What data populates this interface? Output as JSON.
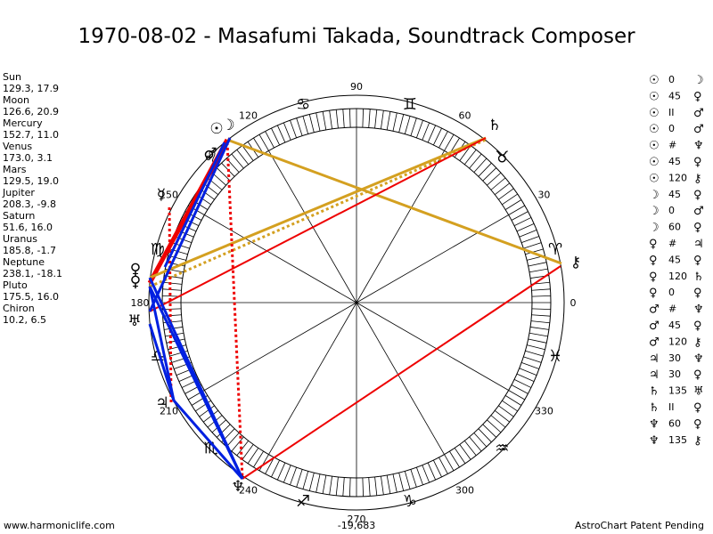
{
  "title": "1970-08-02 - Masafumi Takada, Soundtrack Composer",
  "planets": [
    {
      "name": "Sun",
      "position": "129.3, 17.9",
      "glyph": "☉"
    },
    {
      "name": "Moon",
      "position": "126.6, 20.9",
      "glyph": "☽"
    },
    {
      "name": "Mercury",
      "position": "152.7, 11.0",
      "glyph": "☿"
    },
    {
      "name": "Venus",
      "position": "173.0, 3.1",
      "glyph": "♀"
    },
    {
      "name": "Mars",
      "position": "129.5, 19.0",
      "glyph": "♂"
    },
    {
      "name": "Jupiter",
      "position": "208.3, -9.8",
      "glyph": "♃"
    },
    {
      "name": "Saturn",
      "position": "51.6, 16.0",
      "glyph": "♄"
    },
    {
      "name": "Uranus",
      "position": "185.8, -1.7",
      "glyph": "♅"
    },
    {
      "name": "Neptune",
      "position": "238.1, -18.1",
      "glyph": "♆"
    },
    {
      "name": "Pluto",
      "position": "175.5, 16.0",
      "glyph": "♀"
    },
    {
      "name": "Chiron",
      "position": "10.2, 6.5",
      "glyph": "⚷"
    }
  ],
  "degree_labels": [
    "0",
    "30",
    "60",
    "90",
    "120",
    "150",
    "180",
    "210",
    "240",
    "270",
    "300",
    "330"
  ],
  "signs": [
    "♈",
    "♉",
    "♊",
    "♋",
    "♌",
    "♍",
    "♎",
    "♏",
    "♐",
    "♑",
    "♒",
    "♓"
  ],
  "aspects": [
    {
      "p1": "☉",
      "aspect": "0",
      "p2": "☽"
    },
    {
      "p1": "☉",
      "aspect": "45",
      "p2": "♀"
    },
    {
      "p1": "☉",
      "aspect": "II",
      "p2": "♂"
    },
    {
      "p1": "☉",
      "aspect": "0",
      "p2": "♂"
    },
    {
      "p1": "☉",
      "aspect": "#",
      "p2": "♆"
    },
    {
      "p1": "☉",
      "aspect": "45",
      "p2": "♀"
    },
    {
      "p1": "☉",
      "aspect": "120",
      "p2": "⚷"
    },
    {
      "p1": "☽",
      "aspect": "45",
      "p2": "♀"
    },
    {
      "p1": "☽",
      "aspect": "0",
      "p2": "♂"
    },
    {
      "p1": "☽",
      "aspect": "60",
      "p2": "♀"
    },
    {
      "p1": "♀",
      "aspect": "#",
      "p2": "♃"
    },
    {
      "p1": "♀",
      "aspect": "45",
      "p2": "♀"
    },
    {
      "p1": "♀",
      "aspect": "120",
      "p2": "♄"
    },
    {
      "p1": "♀",
      "aspect": "0",
      "p2": "♀"
    },
    {
      "p1": "♂",
      "aspect": "#",
      "p2": "♆"
    },
    {
      "p1": "♂",
      "aspect": "45",
      "p2": "♀"
    },
    {
      "p1": "♂",
      "aspect": "120",
      "p2": "⚷"
    },
    {
      "p1": "♃",
      "aspect": "30",
      "p2": "♆"
    },
    {
      "p1": "♃",
      "aspect": "30",
      "p2": "♀"
    },
    {
      "p1": "♄",
      "aspect": "135",
      "p2": "♅"
    },
    {
      "p1": "♄",
      "aspect": "II",
      "p2": "♀"
    },
    {
      "p1": "♆",
      "aspect": "60",
      "p2": "♀"
    },
    {
      "p1": "♆",
      "aspect": "135",
      "p2": "⚷"
    }
  ],
  "footer": {
    "left": "www.harmoniclife.com",
    "center": "-19,683",
    "right": "AstroChart Patent Pending"
  }
}
